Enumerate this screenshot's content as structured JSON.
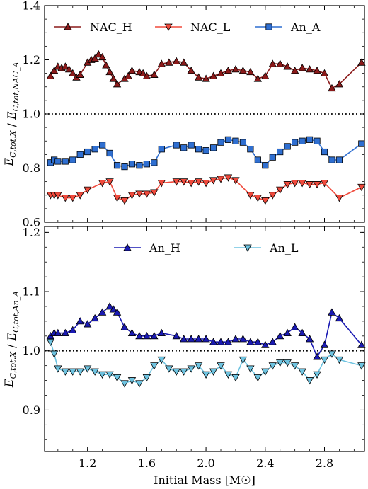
{
  "chart_data": [
    {
      "type": "line",
      "xlabel": "",
      "ylabel": "E_C,tot,X / E_C,tot,NAC_A",
      "xlim": [
        0.91,
        3.07
      ],
      "ylim": [
        0.6,
        1.4
      ],
      "xticks": [
        1.2,
        1.6,
        2.0,
        2.4,
        2.8
      ],
      "yticks": [
        0.6,
        0.8,
        1.0,
        1.2,
        1.4
      ],
      "yticklabels": [
        "0.6",
        "0.8",
        "1.0",
        "1.2",
        "1.4"
      ],
      "reference_line": 1.0,
      "legend": "top",
      "series": [
        {
          "name": "NAC_H",
          "color": "#8b1a1a",
          "marker": "triangle-up",
          "x": [
            0.95,
            0.975,
            1.0,
            1.025,
            1.05,
            1.075,
            1.1,
            1.125,
            1.15,
            1.2,
            1.225,
            1.25,
            1.275,
            1.3,
            1.325,
            1.35,
            1.375,
            1.4,
            1.45,
            1.475,
            1.5,
            1.55,
            1.575,
            1.6,
            1.65,
            1.7,
            1.75,
            1.8,
            1.85,
            1.9,
            1.95,
            2.0,
            2.05,
            2.1,
            2.15,
            2.2,
            2.25,
            2.3,
            2.35,
            2.4,
            2.45,
            2.5,
            2.55,
            2.6,
            2.65,
            2.7,
            2.75,
            2.8,
            2.85,
            2.9,
            3.05
          ],
          "y": [
            1.14,
            1.16,
            1.175,
            1.17,
            1.175,
            1.165,
            1.15,
            1.135,
            1.145,
            1.19,
            1.2,
            1.205,
            1.22,
            1.21,
            1.18,
            1.155,
            1.13,
            1.11,
            1.13,
            1.14,
            1.16,
            1.155,
            1.15,
            1.14,
            1.145,
            1.185,
            1.19,
            1.195,
            1.19,
            1.16,
            1.135,
            1.13,
            1.14,
            1.15,
            1.16,
            1.165,
            1.16,
            1.155,
            1.13,
            1.14,
            1.185,
            1.185,
            1.175,
            1.16,
            1.17,
            1.165,
            1.16,
            1.15,
            1.095,
            1.11,
            1.19
          ]
        },
        {
          "name": "NAC_L",
          "color": "#f04a3c",
          "marker": "triangle-down",
          "x": [
            0.95,
            0.975,
            1.0,
            1.05,
            1.1,
            1.15,
            1.2,
            1.3,
            1.35,
            1.4,
            1.45,
            1.5,
            1.55,
            1.6,
            1.65,
            1.7,
            1.8,
            1.85,
            1.9,
            1.95,
            2.0,
            2.05,
            2.1,
            2.15,
            2.2,
            2.3,
            2.35,
            2.4,
            2.45,
            2.5,
            2.55,
            2.6,
            2.65,
            2.7,
            2.75,
            2.8,
            2.9,
            3.05
          ],
          "y": [
            0.7,
            0.7,
            0.7,
            0.69,
            0.69,
            0.7,
            0.72,
            0.745,
            0.75,
            0.69,
            0.68,
            0.7,
            0.705,
            0.705,
            0.71,
            0.745,
            0.75,
            0.75,
            0.745,
            0.75,
            0.745,
            0.755,
            0.76,
            0.765,
            0.755,
            0.7,
            0.69,
            0.68,
            0.7,
            0.72,
            0.74,
            0.745,
            0.745,
            0.74,
            0.74,
            0.745,
            0.69,
            0.73
          ]
        },
        {
          "name": "An_A",
          "color": "#2f6fd1",
          "marker": "square",
          "x": [
            0.95,
            0.975,
            1.0,
            1.05,
            1.1,
            1.15,
            1.2,
            1.25,
            1.3,
            1.35,
            1.4,
            1.45,
            1.5,
            1.55,
            1.6,
            1.65,
            1.7,
            1.8,
            1.85,
            1.9,
            1.95,
            2.0,
            2.05,
            2.1,
            2.15,
            2.2,
            2.25,
            2.3,
            2.35,
            2.4,
            2.45,
            2.5,
            2.55,
            2.6,
            2.65,
            2.7,
            2.75,
            2.8,
            2.85,
            2.9,
            3.05
          ],
          "y": [
            0.82,
            0.83,
            0.825,
            0.825,
            0.83,
            0.85,
            0.86,
            0.87,
            0.885,
            0.855,
            0.81,
            0.805,
            0.815,
            0.81,
            0.815,
            0.82,
            0.87,
            0.885,
            0.875,
            0.885,
            0.87,
            0.865,
            0.875,
            0.895,
            0.905,
            0.9,
            0.895,
            0.87,
            0.83,
            0.81,
            0.84,
            0.86,
            0.88,
            0.895,
            0.9,
            0.905,
            0.9,
            0.86,
            0.83,
            0.83,
            0.89
          ]
        }
      ]
    },
    {
      "type": "line",
      "xlabel": "Initial Mass [M☉]",
      "ylabel": "E_C,tot,X / E_C,tot,An_A",
      "xlim": [
        0.91,
        3.07
      ],
      "ylim": [
        0.83,
        1.21
      ],
      "xticks": [
        1.2,
        1.6,
        2.0,
        2.4,
        2.8
      ],
      "xticklabels": [
        "1.2",
        "1.6",
        "2.0",
        "2.4",
        "2.8"
      ],
      "yticks": [
        0.9,
        1.0,
        1.1,
        1.2
      ],
      "yticklabels": [
        "0.9",
        "1.0",
        "1.1",
        "1.2"
      ],
      "reference_line": 1.0,
      "legend": "top",
      "series": [
        {
          "name": "An_H",
          "color": "#1a1ab3",
          "marker": "triangle-up",
          "x": [
            0.95,
            0.975,
            1.0,
            1.05,
            1.1,
            1.15,
            1.2,
            1.25,
            1.3,
            1.35,
            1.375,
            1.4,
            1.45,
            1.5,
            1.55,
            1.6,
            1.65,
            1.7,
            1.8,
            1.85,
            1.9,
            1.95,
            2.0,
            2.05,
            2.1,
            2.15,
            2.2,
            2.25,
            2.3,
            2.35,
            2.4,
            2.45,
            2.5,
            2.55,
            2.6,
            2.65,
            2.7,
            2.75,
            2.8,
            2.85,
            2.9,
            3.05
          ],
          "y": [
            1.025,
            1.03,
            1.03,
            1.03,
            1.035,
            1.05,
            1.045,
            1.055,
            1.065,
            1.075,
            1.07,
            1.065,
            1.04,
            1.03,
            1.025,
            1.025,
            1.025,
            1.03,
            1.025,
            1.02,
            1.02,
            1.02,
            1.02,
            1.015,
            1.015,
            1.015,
            1.02,
            1.02,
            1.015,
            1.015,
            1.01,
            1.015,
            1.025,
            1.03,
            1.04,
            1.03,
            1.02,
            0.99,
            1.01,
            1.065,
            1.055,
            1.01
          ]
        },
        {
          "name": "An_L",
          "color": "#6ec3e0",
          "marker": "triangle-down",
          "x": [
            0.95,
            0.975,
            1.0,
            1.05,
            1.1,
            1.15,
            1.2,
            1.25,
            1.3,
            1.35,
            1.4,
            1.45,
            1.5,
            1.55,
            1.6,
            1.65,
            1.7,
            1.75,
            1.8,
            1.85,
            1.9,
            1.95,
            2.0,
            2.05,
            2.1,
            2.15,
            2.2,
            2.25,
            2.3,
            2.35,
            2.4,
            2.45,
            2.5,
            2.55,
            2.6,
            2.65,
            2.7,
            2.75,
            2.8,
            2.85,
            2.9,
            3.05
          ],
          "y": [
            1.015,
            0.995,
            0.97,
            0.965,
            0.965,
            0.965,
            0.97,
            0.965,
            0.96,
            0.96,
            0.955,
            0.945,
            0.95,
            0.945,
            0.955,
            0.975,
            0.985,
            0.97,
            0.965,
            0.965,
            0.97,
            0.975,
            0.96,
            0.965,
            0.975,
            0.96,
            0.955,
            0.985,
            0.97,
            0.955,
            0.965,
            0.975,
            0.98,
            0.98,
            0.975,
            0.965,
            0.95,
            0.96,
            0.985,
            0.995,
            0.985,
            0.975
          ]
        }
      ]
    }
  ]
}
